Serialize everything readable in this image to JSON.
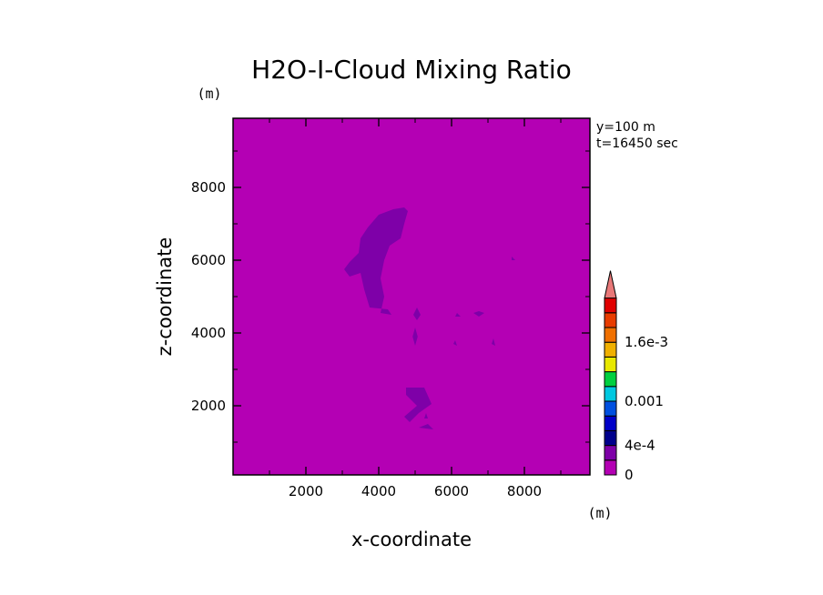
{
  "chart_data": {
    "type": "heatmap",
    "title": "H2O-I-Cloud Mixing Ratio",
    "xlabel": "x-coordinate",
    "ylabel": "z-coordinate",
    "x_unit": "(m)",
    "y_unit": "(m)",
    "xlim": [
      0,
      9800
    ],
    "ylim": [
      100,
      9900
    ],
    "x_ticks": [
      "2000",
      "4000",
      "6000",
      "8000"
    ],
    "y_ticks": [
      "2000",
      "4000",
      "6000",
      "8000"
    ],
    "info": [
      "y=100 m",
      "t=16450 sec"
    ],
    "colorbar": {
      "colors": [
        "#b400b4",
        "#7e00a8",
        "#00008c",
        "#0000c8",
        "#0050e0",
        "#00c8e0",
        "#00d040",
        "#e8e800",
        "#f0b000",
        "#f07000",
        "#e83c00",
        "#e00000"
      ],
      "extend_color": "#e87878",
      "labels": [
        "0",
        "4e-4",
        "0.001",
        "1.6e-3"
      ]
    },
    "background_color": "#b400b4",
    "feature_color": "#7e00a8",
    "features": [
      {
        "points": [
          [
            3050,
            5750
          ],
          [
            3200,
            5950
          ],
          [
            3450,
            6200
          ],
          [
            3500,
            6600
          ],
          [
            3700,
            6900
          ],
          [
            4000,
            7250
          ],
          [
            4400,
            7400
          ],
          [
            4700,
            7450
          ],
          [
            4800,
            7350
          ],
          [
            4700,
            7000
          ],
          [
            4600,
            6600
          ],
          [
            4300,
            6400
          ],
          [
            4150,
            6000
          ],
          [
            4050,
            5500
          ],
          [
            4150,
            5000
          ],
          [
            4050,
            4550
          ],
          [
            4350,
            4500
          ],
          [
            4250,
            4650
          ],
          [
            3750,
            4700
          ],
          [
            3600,
            5200
          ],
          [
            3500,
            5650
          ],
          [
            3200,
            5550
          ]
        ]
      },
      {
        "points": [
          [
            4750,
            2500
          ],
          [
            5250,
            2500
          ],
          [
            5450,
            2050
          ],
          [
            5100,
            1800
          ],
          [
            4850,
            1550
          ],
          [
            4700,
            1700
          ],
          [
            5050,
            2000
          ],
          [
            4750,
            2300
          ]
        ]
      },
      {
        "points": [
          [
            5050,
            4700
          ],
          [
            5150,
            4500
          ],
          [
            5050,
            4350
          ],
          [
            4950,
            4500
          ]
        ]
      },
      {
        "points": [
          [
            5000,
            4150
          ],
          [
            5070,
            3900
          ],
          [
            5000,
            3650
          ],
          [
            4930,
            3900
          ]
        ]
      },
      {
        "points": [
          [
            5100,
            1400
          ],
          [
            5500,
            1350
          ],
          [
            5350,
            1500
          ]
        ]
      },
      {
        "points": [
          [
            6600,
            4550
          ],
          [
            6750,
            4450
          ],
          [
            6900,
            4550
          ],
          [
            6750,
            4600
          ]
        ]
      },
      {
        "points": [
          [
            6100,
            3800
          ],
          [
            6150,
            3650
          ],
          [
            6050,
            3700
          ]
        ]
      },
      {
        "points": [
          [
            7150,
            3850
          ],
          [
            7200,
            3650
          ],
          [
            7100,
            3700
          ]
        ]
      },
      {
        "points": [
          [
            6150,
            4550
          ],
          [
            6250,
            4450
          ],
          [
            6100,
            4450
          ]
        ]
      },
      {
        "points": [
          [
            7650,
            6100
          ],
          [
            7750,
            6000
          ],
          [
            7650,
            6000
          ]
        ]
      },
      {
        "points": [
          [
            5300,
            1800
          ],
          [
            5350,
            1650
          ],
          [
            5250,
            1650
          ]
        ]
      }
    ]
  }
}
